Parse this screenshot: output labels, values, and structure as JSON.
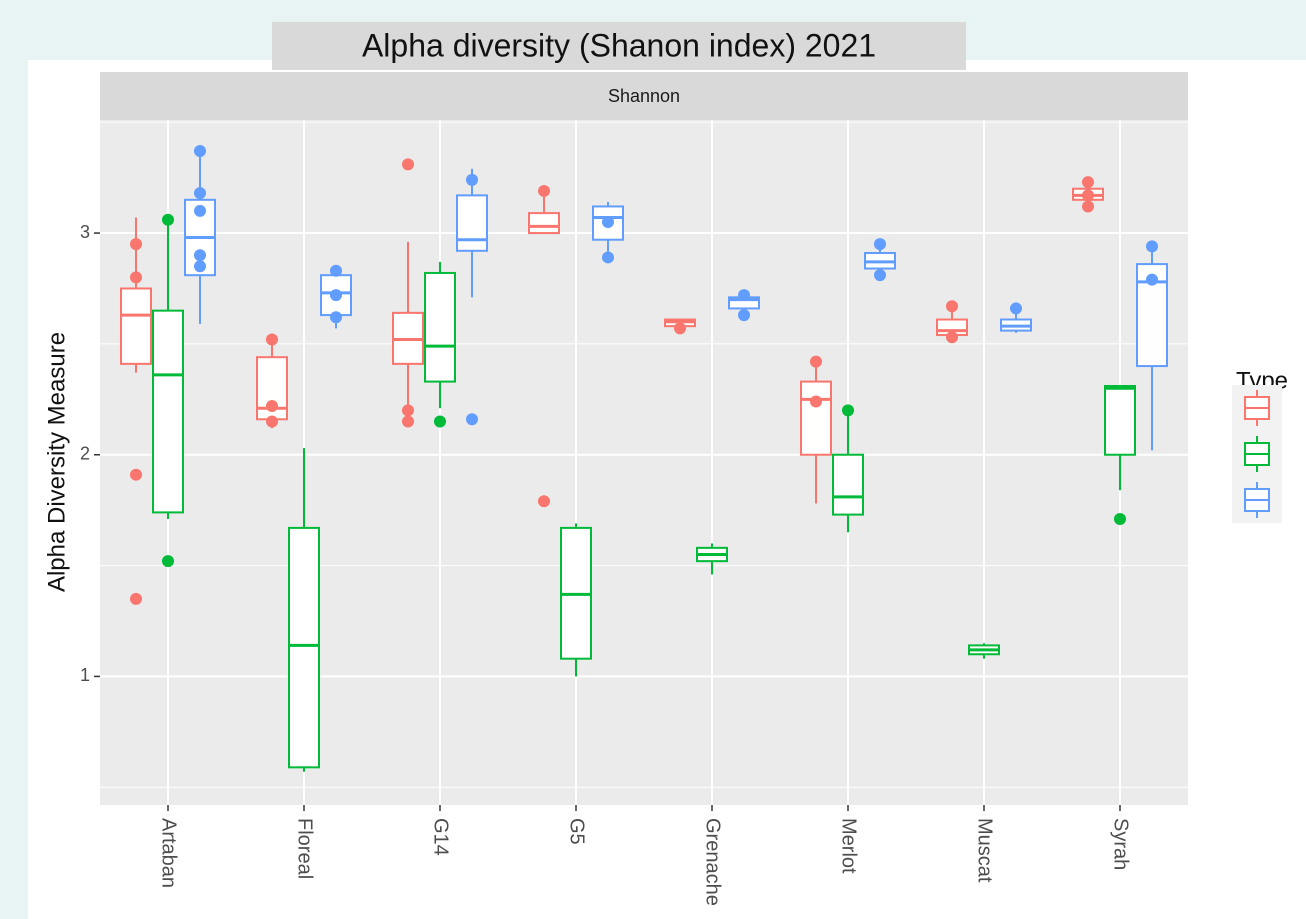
{
  "chart_data": {
    "type": "box",
    "title": "Alpha diversity (Shanon index) 2021",
    "facet_label": "Shannon",
    "y_label": "Alpha Diversity Measure",
    "legend_title": "Type",
    "legend_position": "right",
    "grid": true,
    "categories": [
      "Artaban",
      "Floreal",
      "G14",
      "G5",
      "Grenache",
      "Merlot",
      "Muscat",
      "Syrah"
    ],
    "ylim": [
      0.42,
      3.51
    ],
    "yticks": [
      1,
      2,
      3
    ],
    "minor_yticks": [
      0.5,
      1.5,
      2.5,
      3.5
    ],
    "series": [
      {
        "color": "#f8766d",
        "values": [
          {
            "min": 2.37,
            "q1": 2.41,
            "median": 2.63,
            "q3": 2.75,
            "max": 3.07,
            "outliers": [
              1.91,
              1.35,
              2.95,
              2.8
            ]
          },
          {
            "min": 2.12,
            "q1": 2.16,
            "median": 2.21,
            "q3": 2.44,
            "max": 2.53,
            "outliers": [
              2.52,
              2.22,
              2.15
            ]
          },
          {
            "min": 2.13,
            "q1": 2.41,
            "median": 2.52,
            "q3": 2.64,
            "max": 2.96,
            "outliers": [
              3.31,
              2.2,
              2.15
            ]
          },
          {
            "min": 3.0,
            "q1": 3.0,
            "median": 3.03,
            "q3": 3.09,
            "max": 3.19,
            "outliers": [
              1.79,
              3.19
            ]
          },
          {
            "min": 2.58,
            "q1": 2.58,
            "median": 2.6,
            "q3": 2.61,
            "max": 2.61,
            "outliers": [
              2.57
            ]
          },
          {
            "min": 1.78,
            "q1": 2.0,
            "median": 2.25,
            "q3": 2.33,
            "max": 2.41,
            "outliers": [
              2.42,
              2.24
            ]
          },
          {
            "min": 2.53,
            "q1": 2.54,
            "median": 2.56,
            "q3": 2.61,
            "max": 2.66,
            "outliers": [
              2.67,
              2.53
            ]
          },
          {
            "min": 3.13,
            "q1": 3.15,
            "median": 3.17,
            "q3": 3.2,
            "max": 3.22,
            "outliers": [
              3.23,
              3.17,
              3.12
            ]
          }
        ]
      },
      {
        "color": "#00ba38",
        "values": [
          {
            "min": 1.71,
            "q1": 1.74,
            "median": 2.36,
            "q3": 2.65,
            "max": 3.04,
            "outliers": [
              1.52,
              3.06
            ]
          },
          {
            "min": 0.57,
            "q1": 0.59,
            "median": 1.14,
            "q3": 1.67,
            "max": 2.03,
            "outliers": []
          },
          {
            "min": 2.21,
            "q1": 2.33,
            "median": 2.49,
            "q3": 2.82,
            "max": 2.87,
            "outliers": [
              2.15
            ]
          },
          {
            "min": 1.0,
            "q1": 1.08,
            "median": 1.37,
            "q3": 1.67,
            "max": 1.69,
            "outliers": []
          },
          {
            "min": 1.46,
            "q1": 1.52,
            "median": 1.55,
            "q3": 1.58,
            "max": 1.6,
            "outliers": []
          },
          {
            "min": 1.65,
            "q1": 1.73,
            "median": 1.81,
            "q3": 2.0,
            "max": 2.19,
            "outliers": [
              2.2
            ]
          },
          {
            "min": 1.08,
            "q1": 1.1,
            "median": 1.12,
            "q3": 1.14,
            "max": 1.15,
            "outliers": []
          },
          {
            "min": 1.84,
            "q1": 2.0,
            "median": 2.3,
            "q3": 2.31,
            "max": 2.31,
            "outliers": [
              1.71
            ]
          }
        ]
      },
      {
        "color": "#619cff",
        "values": [
          {
            "min": 2.59,
            "q1": 2.81,
            "median": 2.98,
            "q3": 3.15,
            "max": 3.36,
            "outliers": [
              3.37,
              3.18,
              3.1,
              2.9,
              2.85
            ]
          },
          {
            "min": 2.57,
            "q1": 2.63,
            "median": 2.73,
            "q3": 2.81,
            "max": 2.81,
            "outliers": [
              2.83,
              2.72,
              2.62
            ]
          },
          {
            "min": 2.71,
            "q1": 2.92,
            "median": 2.97,
            "q3": 3.17,
            "max": 3.29,
            "outliers": [
              2.16,
              3.24
            ]
          },
          {
            "min": 2.9,
            "q1": 2.97,
            "median": 3.07,
            "q3": 3.12,
            "max": 3.14,
            "outliers": [
              2.89,
              3.05
            ]
          },
          {
            "min": 2.64,
            "q1": 2.66,
            "median": 2.7,
            "q3": 2.71,
            "max": 2.72,
            "outliers": [
              2.72,
              2.63
            ]
          },
          {
            "min": 2.81,
            "q1": 2.84,
            "median": 2.87,
            "q3": 2.91,
            "max": 2.94,
            "outliers": [
              2.95,
              2.81
            ]
          },
          {
            "min": 2.55,
            "q1": 2.56,
            "median": 2.58,
            "q3": 2.61,
            "max": 2.65,
            "outliers": [
              2.66
            ]
          },
          {
            "min": 2.02,
            "q1": 2.4,
            "median": 2.78,
            "q3": 2.86,
            "max": 2.94,
            "outliers": [
              2.94,
              2.79
            ]
          }
        ]
      }
    ]
  }
}
